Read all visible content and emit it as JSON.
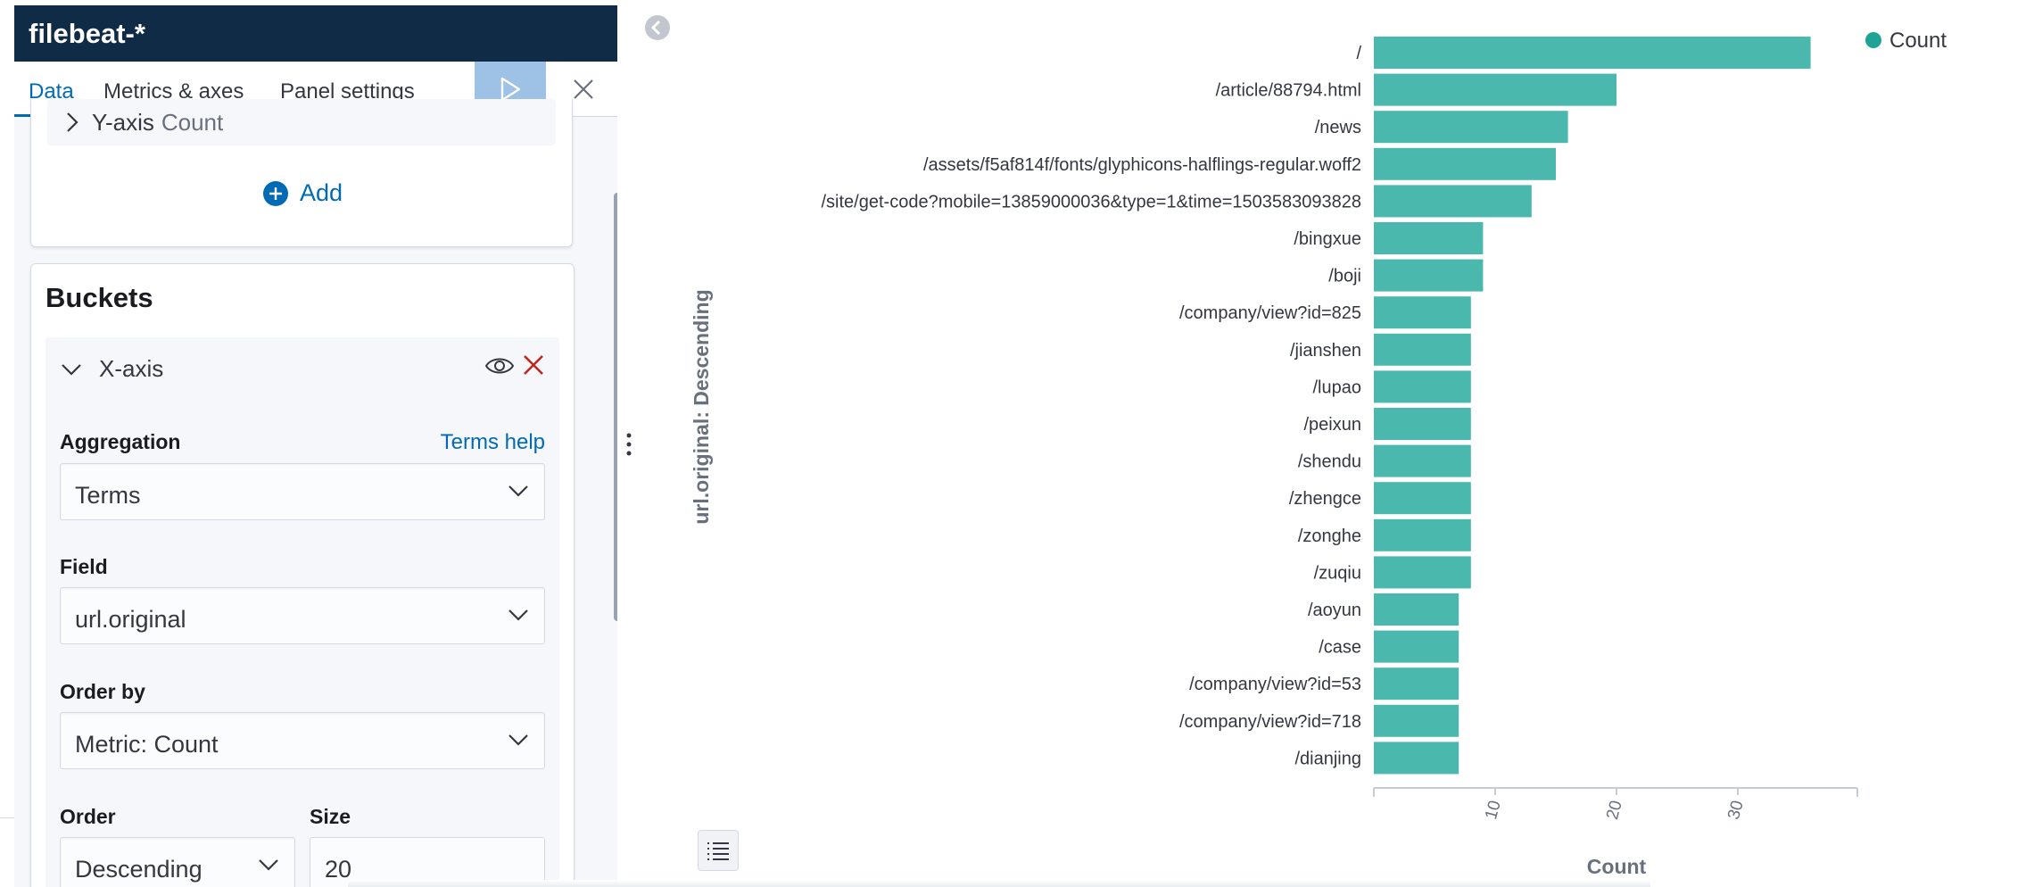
{
  "sidebar": {
    "index_pattern": "filebeat-*",
    "tabs": [
      {
        "label": "Data",
        "active": true
      },
      {
        "label": "Metrics & axes",
        "active": false
      },
      {
        "label": "Panel settings",
        "active": false
      }
    ],
    "apply_icon": "play-icon",
    "close_icon": "close-icon"
  },
  "metrics": {
    "yaxis_prefix": "Y-axis",
    "yaxis_suffix": "Count",
    "add_label": "Add"
  },
  "buckets": {
    "title": "Buckets",
    "xaxis_label": "X-axis",
    "aggregation": {
      "label": "Aggregation",
      "help": "Terms help",
      "value": "Terms"
    },
    "field": {
      "label": "Field",
      "value": "url.original"
    },
    "order_by": {
      "label": "Order by",
      "value": "Metric: Count"
    },
    "order": {
      "label": "Order",
      "value": "Descending"
    },
    "size": {
      "label": "Size",
      "value": "20"
    }
  },
  "colors": {
    "bar": "#4ab8ad",
    "legend_dot": "#1fa395",
    "accent": "#006bb4",
    "header": "#0f2b46",
    "danger": "#bd271e"
  },
  "chart_data": {
    "type": "bar",
    "orientation": "horizontal",
    "categories": [
      "/",
      "/article/88794.html",
      "/news",
      "/assets/f5af814f/fonts/glyphicons-halflings-regular.woff2",
      "/site/get-code?mobile=13859000036&type=1&time=1503583093828",
      "/bingxue",
      "/boji",
      "/company/view?id=825",
      "/jianshen",
      "/lupao",
      "/peixun",
      "/shendu",
      "/zhengce",
      "/zonghe",
      "/zuqiu",
      "/aoyun",
      "/case",
      "/company/view?id=53",
      "/company/view?id=718",
      "/dianjing"
    ],
    "series": [
      {
        "name": "Count",
        "values": [
          36,
          20,
          16,
          15,
          13,
          9,
          9,
          8,
          8,
          8,
          8,
          8,
          8,
          8,
          8,
          7,
          7,
          7,
          7,
          7
        ]
      }
    ],
    "xlabel": "Count",
    "ylabel": "url.original: Descending",
    "xticks": [
      10,
      20,
      30
    ],
    "xlim": [
      0,
      40
    ],
    "legend": {
      "entries": [
        "Count"
      ],
      "position": "top-right"
    },
    "grid": false
  }
}
